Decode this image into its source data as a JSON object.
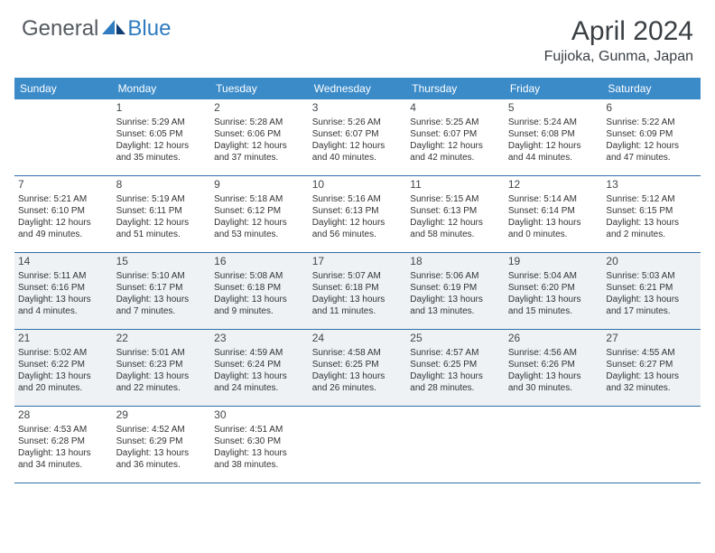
{
  "logo": {
    "general": "General",
    "blue": "Blue"
  },
  "header": {
    "title": "April 2024",
    "location": "Fujioka, Gunma, Japan"
  },
  "colors": {
    "header_bar": "#3b8bc9",
    "row_border": "#2f6fa8",
    "shaded_bg": "#eef2f5",
    "text": "#333333",
    "title_text": "#3a3f44",
    "logo_gray": "#555a60",
    "logo_blue": "#2f7bbf"
  },
  "day_headers": [
    "Sunday",
    "Monday",
    "Tuesday",
    "Wednesday",
    "Thursday",
    "Friday",
    "Saturday"
  ],
  "weeks": [
    {
      "shaded": false,
      "days": [
        null,
        {
          "n": "1",
          "sr": "5:29 AM",
          "ss": "6:05 PM",
          "d1": "Daylight: 12 hours",
          "d2": "and 35 minutes."
        },
        {
          "n": "2",
          "sr": "5:28 AM",
          "ss": "6:06 PM",
          "d1": "Daylight: 12 hours",
          "d2": "and 37 minutes."
        },
        {
          "n": "3",
          "sr": "5:26 AM",
          "ss": "6:07 PM",
          "d1": "Daylight: 12 hours",
          "d2": "and 40 minutes."
        },
        {
          "n": "4",
          "sr": "5:25 AM",
          "ss": "6:07 PM",
          "d1": "Daylight: 12 hours",
          "d2": "and 42 minutes."
        },
        {
          "n": "5",
          "sr": "5:24 AM",
          "ss": "6:08 PM",
          "d1": "Daylight: 12 hours",
          "d2": "and 44 minutes."
        },
        {
          "n": "6",
          "sr": "5:22 AM",
          "ss": "6:09 PM",
          "d1": "Daylight: 12 hours",
          "d2": "and 47 minutes."
        }
      ]
    },
    {
      "shaded": false,
      "days": [
        {
          "n": "7",
          "sr": "5:21 AM",
          "ss": "6:10 PM",
          "d1": "Daylight: 12 hours",
          "d2": "and 49 minutes."
        },
        {
          "n": "8",
          "sr": "5:19 AM",
          "ss": "6:11 PM",
          "d1": "Daylight: 12 hours",
          "d2": "and 51 minutes."
        },
        {
          "n": "9",
          "sr": "5:18 AM",
          "ss": "6:12 PM",
          "d1": "Daylight: 12 hours",
          "d2": "and 53 minutes."
        },
        {
          "n": "10",
          "sr": "5:16 AM",
          "ss": "6:13 PM",
          "d1": "Daylight: 12 hours",
          "d2": "and 56 minutes."
        },
        {
          "n": "11",
          "sr": "5:15 AM",
          "ss": "6:13 PM",
          "d1": "Daylight: 12 hours",
          "d2": "and 58 minutes."
        },
        {
          "n": "12",
          "sr": "5:14 AM",
          "ss": "6:14 PM",
          "d1": "Daylight: 13 hours",
          "d2": "and 0 minutes."
        },
        {
          "n": "13",
          "sr": "5:12 AM",
          "ss": "6:15 PM",
          "d1": "Daylight: 13 hours",
          "d2": "and 2 minutes."
        }
      ]
    },
    {
      "shaded": true,
      "days": [
        {
          "n": "14",
          "sr": "5:11 AM",
          "ss": "6:16 PM",
          "d1": "Daylight: 13 hours",
          "d2": "and 4 minutes."
        },
        {
          "n": "15",
          "sr": "5:10 AM",
          "ss": "6:17 PM",
          "d1": "Daylight: 13 hours",
          "d2": "and 7 minutes."
        },
        {
          "n": "16",
          "sr": "5:08 AM",
          "ss": "6:18 PM",
          "d1": "Daylight: 13 hours",
          "d2": "and 9 minutes."
        },
        {
          "n": "17",
          "sr": "5:07 AM",
          "ss": "6:18 PM",
          "d1": "Daylight: 13 hours",
          "d2": "and 11 minutes."
        },
        {
          "n": "18",
          "sr": "5:06 AM",
          "ss": "6:19 PM",
          "d1": "Daylight: 13 hours",
          "d2": "and 13 minutes."
        },
        {
          "n": "19",
          "sr": "5:04 AM",
          "ss": "6:20 PM",
          "d1": "Daylight: 13 hours",
          "d2": "and 15 minutes."
        },
        {
          "n": "20",
          "sr": "5:03 AM",
          "ss": "6:21 PM",
          "d1": "Daylight: 13 hours",
          "d2": "and 17 minutes."
        }
      ]
    },
    {
      "shaded": true,
      "days": [
        {
          "n": "21",
          "sr": "5:02 AM",
          "ss": "6:22 PM",
          "d1": "Daylight: 13 hours",
          "d2": "and 20 minutes."
        },
        {
          "n": "22",
          "sr": "5:01 AM",
          "ss": "6:23 PM",
          "d1": "Daylight: 13 hours",
          "d2": "and 22 minutes."
        },
        {
          "n": "23",
          "sr": "4:59 AM",
          "ss": "6:24 PM",
          "d1": "Daylight: 13 hours",
          "d2": "and 24 minutes."
        },
        {
          "n": "24",
          "sr": "4:58 AM",
          "ss": "6:25 PM",
          "d1": "Daylight: 13 hours",
          "d2": "and 26 minutes."
        },
        {
          "n": "25",
          "sr": "4:57 AM",
          "ss": "6:25 PM",
          "d1": "Daylight: 13 hours",
          "d2": "and 28 minutes."
        },
        {
          "n": "26",
          "sr": "4:56 AM",
          "ss": "6:26 PM",
          "d1": "Daylight: 13 hours",
          "d2": "and 30 minutes."
        },
        {
          "n": "27",
          "sr": "4:55 AM",
          "ss": "6:27 PM",
          "d1": "Daylight: 13 hours",
          "d2": "and 32 minutes."
        }
      ]
    },
    {
      "shaded": false,
      "days": [
        {
          "n": "28",
          "sr": "4:53 AM",
          "ss": "6:28 PM",
          "d1": "Daylight: 13 hours",
          "d2": "and 34 minutes."
        },
        {
          "n": "29",
          "sr": "4:52 AM",
          "ss": "6:29 PM",
          "d1": "Daylight: 13 hours",
          "d2": "and 36 minutes."
        },
        {
          "n": "30",
          "sr": "4:51 AM",
          "ss": "6:30 PM",
          "d1": "Daylight: 13 hours",
          "d2": "and 38 minutes."
        },
        null,
        null,
        null,
        null
      ]
    }
  ]
}
